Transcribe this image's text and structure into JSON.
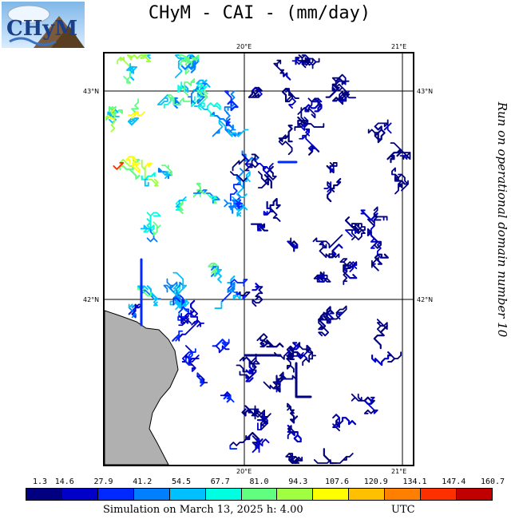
{
  "title": "CHyM - CAI - (mm/day)",
  "logo_text": "CHyM",
  "side_label": "Run on operational domain number 10",
  "grid_labels": {
    "lon_left": "20°E",
    "lon_right": "21°E",
    "lat_top": "43°N",
    "lat_bottom": "42°N"
  },
  "legend": {
    "values": [
      "1.3",
      "14.6",
      "27.9",
      "41.2",
      "54.5",
      "67.7",
      "81.0",
      "94.3",
      "107.6",
      "120.9",
      "134.1",
      "147.4",
      "160.7"
    ],
    "colors": [
      "#000080",
      "#0000c8",
      "#0028ff",
      "#0080ff",
      "#00c0ff",
      "#00ffe0",
      "#60ff80",
      "#a0ff40",
      "#ffff00",
      "#ffc000",
      "#ff8000",
      "#ff3000",
      "#c00000"
    ]
  },
  "footer": {
    "simulation": "Simulation on March 13, 2025 h: 4.00",
    "tz": "UTC"
  }
}
